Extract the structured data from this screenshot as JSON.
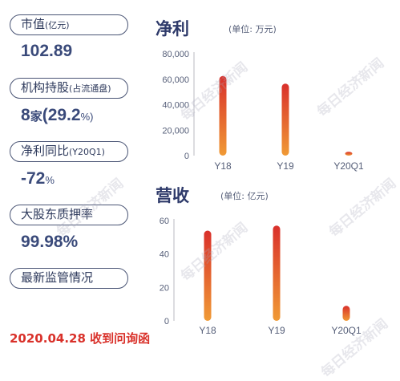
{
  "metrics": [
    {
      "label": "市值",
      "label_sub": "(亿元)",
      "value_big": "102.89",
      "value_small": ""
    },
    {
      "label": "机构持股",
      "label_sub": "(占流通盘)",
      "value_big": "8",
      "value_mid": "家",
      "value_big2": "(29.2",
      "value_small": "%)"
    },
    {
      "label": "净利同比",
      "label_sub": "(Y20Q1)",
      "value_big": "-72",
      "value_small": "%"
    },
    {
      "label": "大股东质押率",
      "label_sub": "",
      "value_big": "99.98%",
      "value_small": ""
    },
    {
      "label": "最新监管情况",
      "label_sub": ""
    }
  ],
  "footer_date": "2020.04.28 收到问询函",
  "watermark": "每日经济新闻",
  "colors": {
    "bar_top": "#d9302b",
    "bar_bottom": "#f09a35",
    "accent": "#d9312a",
    "navy": "#2e3a6a"
  },
  "chart_data": [
    {
      "type": "bar",
      "title": "净利",
      "unit": "(单位: 万元)",
      "categories": [
        "Y18",
        "Y19",
        "Y20Q1"
      ],
      "values": [
        62500,
        56500,
        3000
      ],
      "ylim": [
        0,
        80000
      ],
      "yticks": [
        "80,000",
        "60,000",
        "40,000",
        "20,000",
        "0"
      ]
    },
    {
      "type": "bar",
      "title": "营收",
      "unit": "(单位: 亿元)",
      "categories": [
        "Y18",
        "Y19",
        "Y20Q1"
      ],
      "values": [
        54,
        57,
        9
      ],
      "ylim": [
        0,
        60
      ],
      "yticks": [
        "60",
        "40",
        "20",
        "0"
      ]
    }
  ]
}
